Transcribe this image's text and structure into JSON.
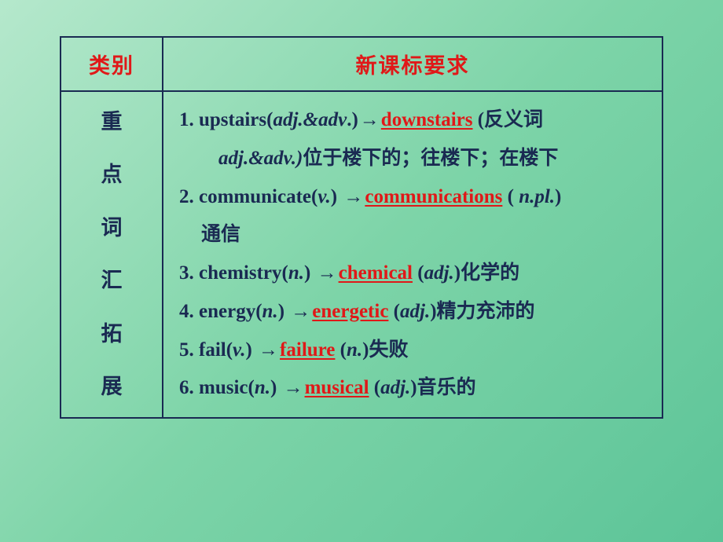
{
  "header": {
    "left": "类别",
    "right": "新课标要求"
  },
  "sideLabel": [
    "重",
    "点",
    "词",
    "汇",
    "拓",
    "展"
  ],
  "entries": [
    {
      "num": "1. ",
      "word": "upstairs",
      "pos": "(adj.&adv.)",
      "arrow": "→",
      "deriv": "downstairs",
      "after": "  (反义词"
    },
    {
      "isIndent": true,
      "text_pos": "adj.&adv.)",
      "text_rest": "位于楼下的；往楼下；在楼下"
    },
    {
      "num": "2. ",
      "word": "communicate",
      "pos": "(v.) ",
      "arrow": "→",
      "deriv": "communications",
      "after": " ( ",
      "pos2": "n.pl.",
      "after2": ")"
    },
    {
      "isSub": true,
      "text": "通信"
    },
    {
      "num": "3. ",
      "word": "chemistry",
      "pos": "(n.) ",
      "arrow": "→",
      "deriv": "chemical",
      "after": " (",
      "pos2": "adj.",
      "after2": ")化学的"
    },
    {
      "num": "4. ",
      "word": "energy",
      "pos": "(n.) ",
      "arrow": "→",
      "deriv": "energetic",
      "after": " (",
      "pos2": "adj.",
      "after2": ")精力充沛的"
    },
    {
      "num": "5. ",
      "word": "fail",
      "pos": "(v.)  ",
      "arrow": "→",
      "deriv": "failure",
      "after": " (",
      "pos2": "n.",
      "after2": ")失败"
    },
    {
      "num": "6. ",
      "word": "music",
      "pos": "(n.)  ",
      "arrow": "→",
      "deriv": "musical",
      "after": " (",
      "pos2": "adj.",
      "after2": ")音乐的"
    }
  ],
  "colors": {
    "accent": "#e01818",
    "text": "#1a2a52",
    "border": "#1a2a52",
    "bg_start": "#b5e8cc",
    "bg_end": "#5cc498"
  }
}
